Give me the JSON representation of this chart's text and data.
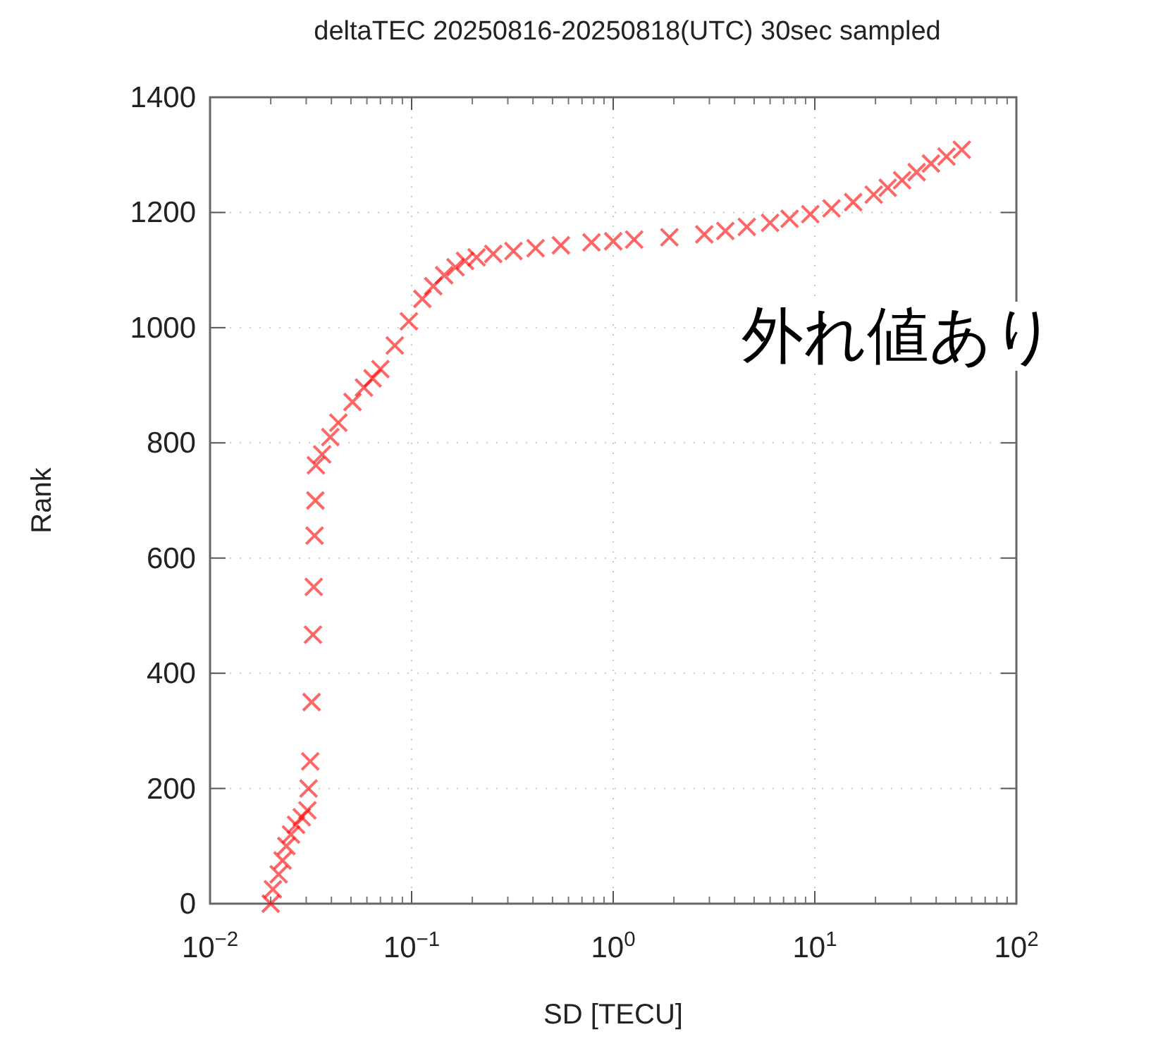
{
  "chart_data": {
    "type": "scatter",
    "title": "deltaTEC 20250816-20250818(UTC) 30sec sampled",
    "xlabel": "SD [TECU]",
    "ylabel": "Rank",
    "annotations": [
      "外れ値あり"
    ],
    "log": "x",
    "marker": "cross",
    "grid": true,
    "xlim": [
      0.01,
      100
    ],
    "ylim": [
      0,
      1400
    ],
    "xticks": [
      {
        "value": 0.01,
        "label": "10$^{−2}$"
      },
      {
        "value": 0.1,
        "label": "10$^{−1}$"
      },
      {
        "value": 1,
        "label": "10$^{0}$"
      },
      {
        "value": 10,
        "label": "10$^{1}$"
      },
      {
        "value": 100,
        "label": "10$^{2}$"
      }
    ],
    "yticks": [
      0,
      200,
      400,
      600,
      800,
      1000,
      1200,
      1400
    ],
    "series": [
      {
        "color": "#ff0000",
        "x": [
          0.02,
          0.0205,
          0.0219,
          0.0229,
          0.0239,
          0.0252,
          0.0267,
          0.0285,
          0.0304,
          0.0308,
          0.0314,
          0.0319,
          0.0324,
          0.0327,
          0.033,
          0.0333,
          0.0335,
          0.036,
          0.0395,
          0.0433,
          0.0509,
          0.058,
          0.064,
          0.07,
          0.0825,
          0.0969,
          0.113,
          0.128,
          0.145,
          0.165,
          0.184,
          0.21,
          0.254,
          0.32,
          0.412,
          0.55,
          0.78,
          1.0,
          1.27,
          1.9,
          2.83,
          3.6,
          4.6,
          6.0,
          7.5,
          9.5,
          12.1,
          15.5,
          19.6,
          23.0,
          27.1,
          32.0,
          37.7,
          45.0,
          53.6
        ],
        "values": [
          0,
          25,
          51,
          75,
          100,
          120,
          137,
          150,
          162,
          200,
          247,
          350,
          467,
          550,
          639,
          700,
          761,
          780,
          810,
          835,
          871,
          896,
          912,
          928,
          969,
          1011,
          1050,
          1072,
          1091,
          1105,
          1116,
          1122,
          1128,
          1133,
          1138,
          1143,
          1148,
          1150,
          1153,
          1157,
          1162,
          1168,
          1175,
          1182,
          1189,
          1197,
          1207,
          1218,
          1231,
          1243,
          1256,
          1270,
          1285,
          1297,
          1309
        ]
      }
    ]
  }
}
